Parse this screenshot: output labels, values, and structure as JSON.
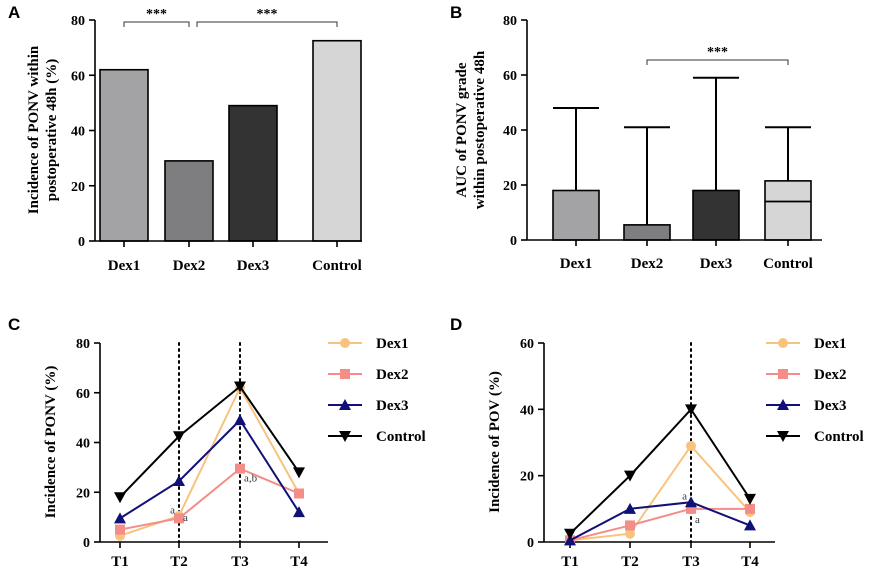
{
  "chart_data": [
    {
      "panel": "A",
      "type": "bar",
      "ylabel": [
        "Incidence of PONV within",
        "postoperative 48h (%)"
      ],
      "ylim": [
        0,
        80
      ],
      "yticks": [
        0,
        20,
        40,
        60,
        80
      ],
      "categories": [
        "Dex1",
        "Dex2",
        "Dex3",
        "Control"
      ],
      "values": [
        62,
        29,
        49,
        72.5
      ],
      "colors": [
        "#a3a3a6",
        "#7e7e80",
        "#333333",
        "#d6d6d6"
      ],
      "significance": [
        {
          "from": 0,
          "to": 1,
          "label": "***"
        },
        {
          "from": 1,
          "to": 3,
          "label": "***"
        }
      ]
    },
    {
      "panel": "B",
      "type": "bar",
      "ylabel": [
        "AUC of PONV grade",
        "within postoperative 48h"
      ],
      "ylim": [
        0,
        80
      ],
      "yticks": [
        0,
        20,
        40,
        60,
        80
      ],
      "categories": [
        "Dex1",
        "Dex2",
        "Dex3",
        "Control"
      ],
      "values": [
        18,
        5.5,
        18,
        21.5
      ],
      "medians": [
        null,
        null,
        null,
        14
      ],
      "whisker_max": [
        48,
        41,
        59,
        41
      ],
      "colors": [
        "#a3a3a6",
        "#7e7e80",
        "#333333",
        "#d6d6d6"
      ],
      "significance": [
        {
          "from": 1,
          "to": 3,
          "label": "***"
        }
      ]
    },
    {
      "panel": "C",
      "type": "line",
      "ylabel": "Incidence of PONV (%)",
      "ylim": [
        0,
        80
      ],
      "yticks": [
        0,
        20,
        40,
        60,
        80
      ],
      "x": [
        "T1",
        "T2",
        "T3",
        "T4"
      ],
      "dotted_at": [
        "T2",
        "T3"
      ],
      "series": [
        {
          "name": "Dex1",
          "values": [
            2.5,
            10.5,
            62,
            19.5
          ],
          "color": "#f8c37e",
          "marker": "circle"
        },
        {
          "name": "Dex2",
          "values": [
            5,
            9.5,
            29.5,
            19.5
          ],
          "color": "#f48c88",
          "marker": "square"
        },
        {
          "name": "Dex3",
          "values": [
            9.5,
            24.5,
            49,
            12
          ],
          "color": "#101077",
          "marker": "triangle-up"
        },
        {
          "name": "Control",
          "values": [
            18,
            42.5,
            62.5,
            28
          ],
          "color": "#000000",
          "marker": "triangle-down"
        }
      ],
      "annotations": [
        {
          "x": "T2",
          "y": 13,
          "text": "a",
          "side": "left"
        },
        {
          "x": "T2",
          "y": 10,
          "text": "a",
          "side": "right"
        },
        {
          "x": "T3",
          "y": 26,
          "text": "a,b",
          "side": "right"
        }
      ]
    },
    {
      "panel": "D",
      "type": "line",
      "ylabel": "Incidence of POV (%)",
      "ylim": [
        0,
        60
      ],
      "yticks": [
        0,
        20,
        40,
        60
      ],
      "x": [
        "T1",
        "T2",
        "T3",
        "T4"
      ],
      "dotted_at": [
        "T3"
      ],
      "series": [
        {
          "name": "Dex1",
          "values": [
            0.5,
            2.5,
            29,
            9
          ],
          "color": "#f8c37e",
          "marker": "circle"
        },
        {
          "name": "Dex2",
          "values": [
            0.5,
            5,
            10,
            10
          ],
          "color": "#f48c88",
          "marker": "square"
        },
        {
          "name": "Dex3",
          "values": [
            0.5,
            10,
            12,
            5
          ],
          "color": "#101077",
          "marker": "triangle-up"
        },
        {
          "name": "Control",
          "values": [
            2.5,
            20,
            40,
            13
          ],
          "color": "#000000",
          "marker": "triangle-down"
        }
      ],
      "annotations": [
        {
          "x": "T3",
          "y": 14,
          "text": "a",
          "side": "left"
        },
        {
          "x": "T3",
          "y": 7,
          "text": "a",
          "side": "right"
        }
      ]
    }
  ]
}
